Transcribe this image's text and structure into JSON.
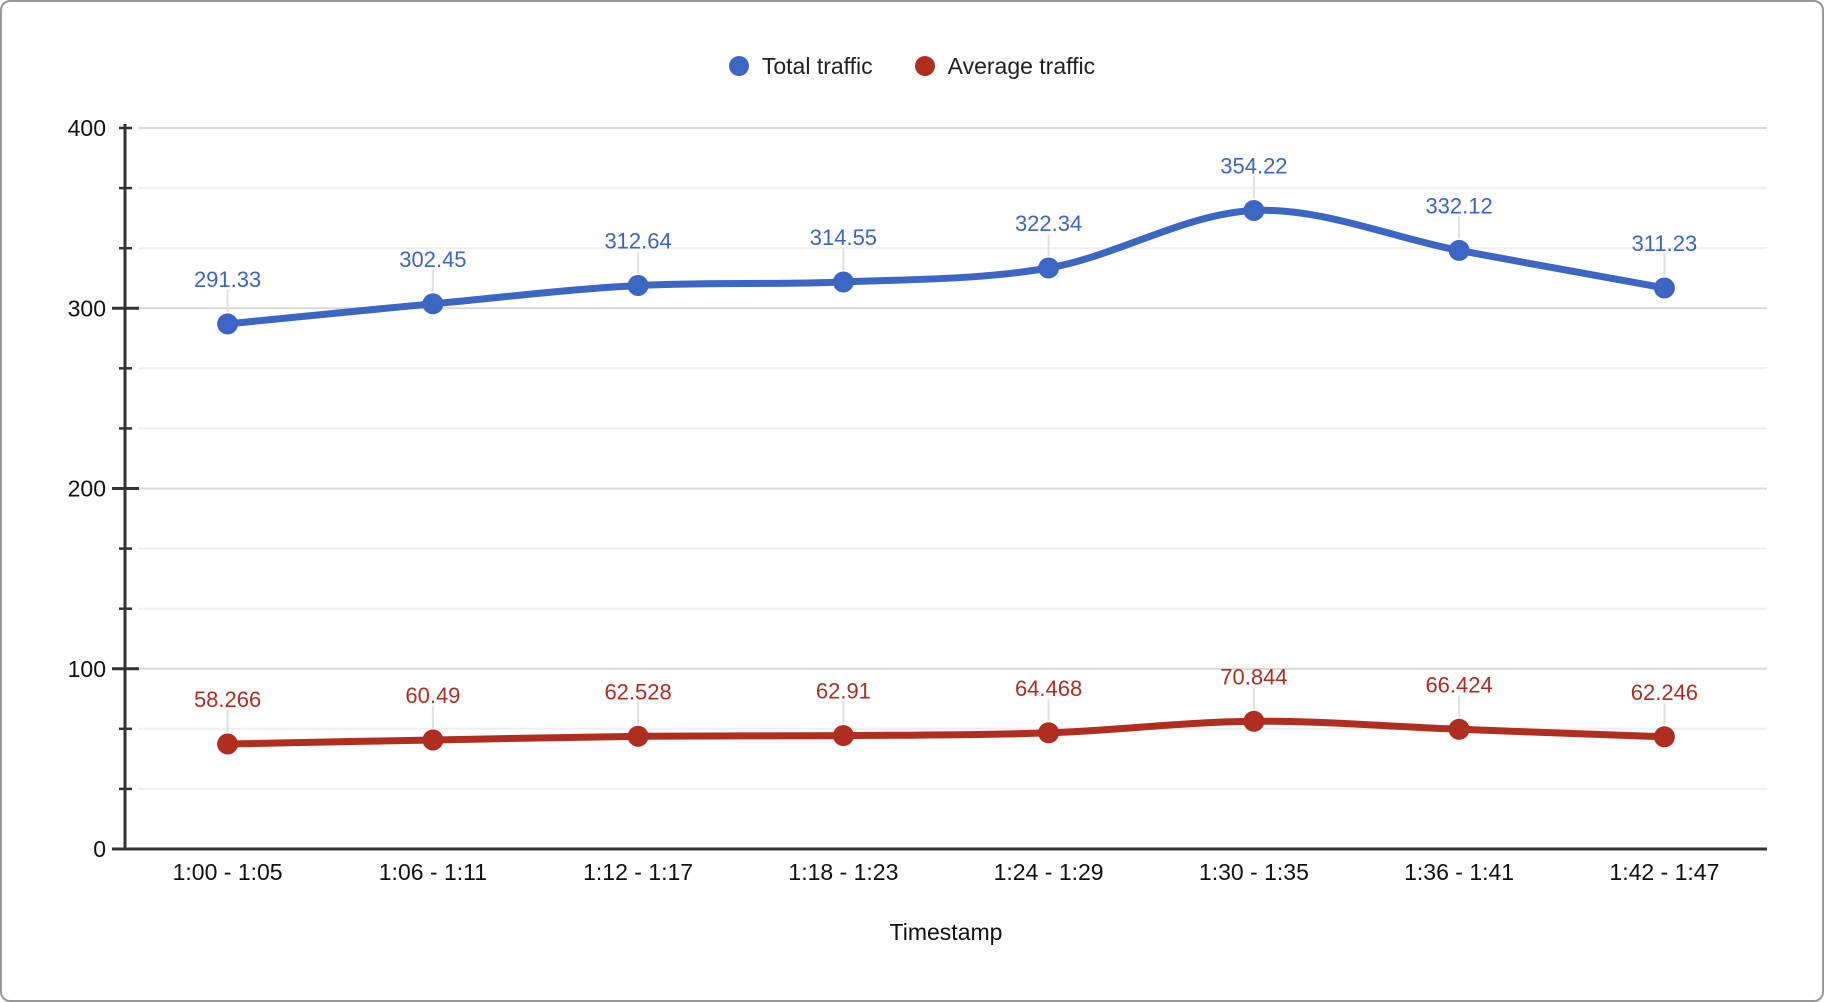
{
  "chart_data": {
    "type": "line",
    "smooth": true,
    "grid": true,
    "legend_position": "top",
    "xlabel": "Timestamp",
    "ylabel": "",
    "ylim": [
      0,
      400
    ],
    "y_major_step": 100,
    "y_minor_per_major": 3,
    "y_tick_labels": [
      "0",
      "100",
      "200",
      "300",
      "400"
    ],
    "categories": [
      "1:00 - 1:05",
      "1:06 - 1:11",
      "1:12 - 1:17",
      "1:18 - 1:23",
      "1:24 - 1:29",
      "1:30 - 1:35",
      "1:36 - 1:41",
      "1:42 - 1:47"
    ],
    "series": [
      {
        "name": "Total traffic",
        "color": "#3b66c4",
        "values": [
          291.33,
          302.45,
          312.64,
          314.55,
          322.34,
          354.22,
          332.12,
          311.23
        ],
        "labels": [
          "291.33",
          "302.45",
          "312.64",
          "314.55",
          "322.34",
          "354.22",
          "332.12",
          "311.23"
        ]
      },
      {
        "name": "Average traffic",
        "color": "#b02e20",
        "values": [
          58.266,
          60.49,
          62.528,
          62.91,
          64.468,
          70.844,
          66.424,
          62.246
        ],
        "labels": [
          "58.266",
          "60.49",
          "62.528",
          "62.91",
          "64.468",
          "70.844",
          "66.424",
          "62.246"
        ]
      }
    ],
    "colors": {
      "axis": "#333333",
      "major_grid": "#d9d9d9",
      "minor_grid": "#efefef",
      "leader_stub": "#e0e0e0",
      "tick_text": "#111111",
      "axis_title_text": "#111111"
    }
  }
}
